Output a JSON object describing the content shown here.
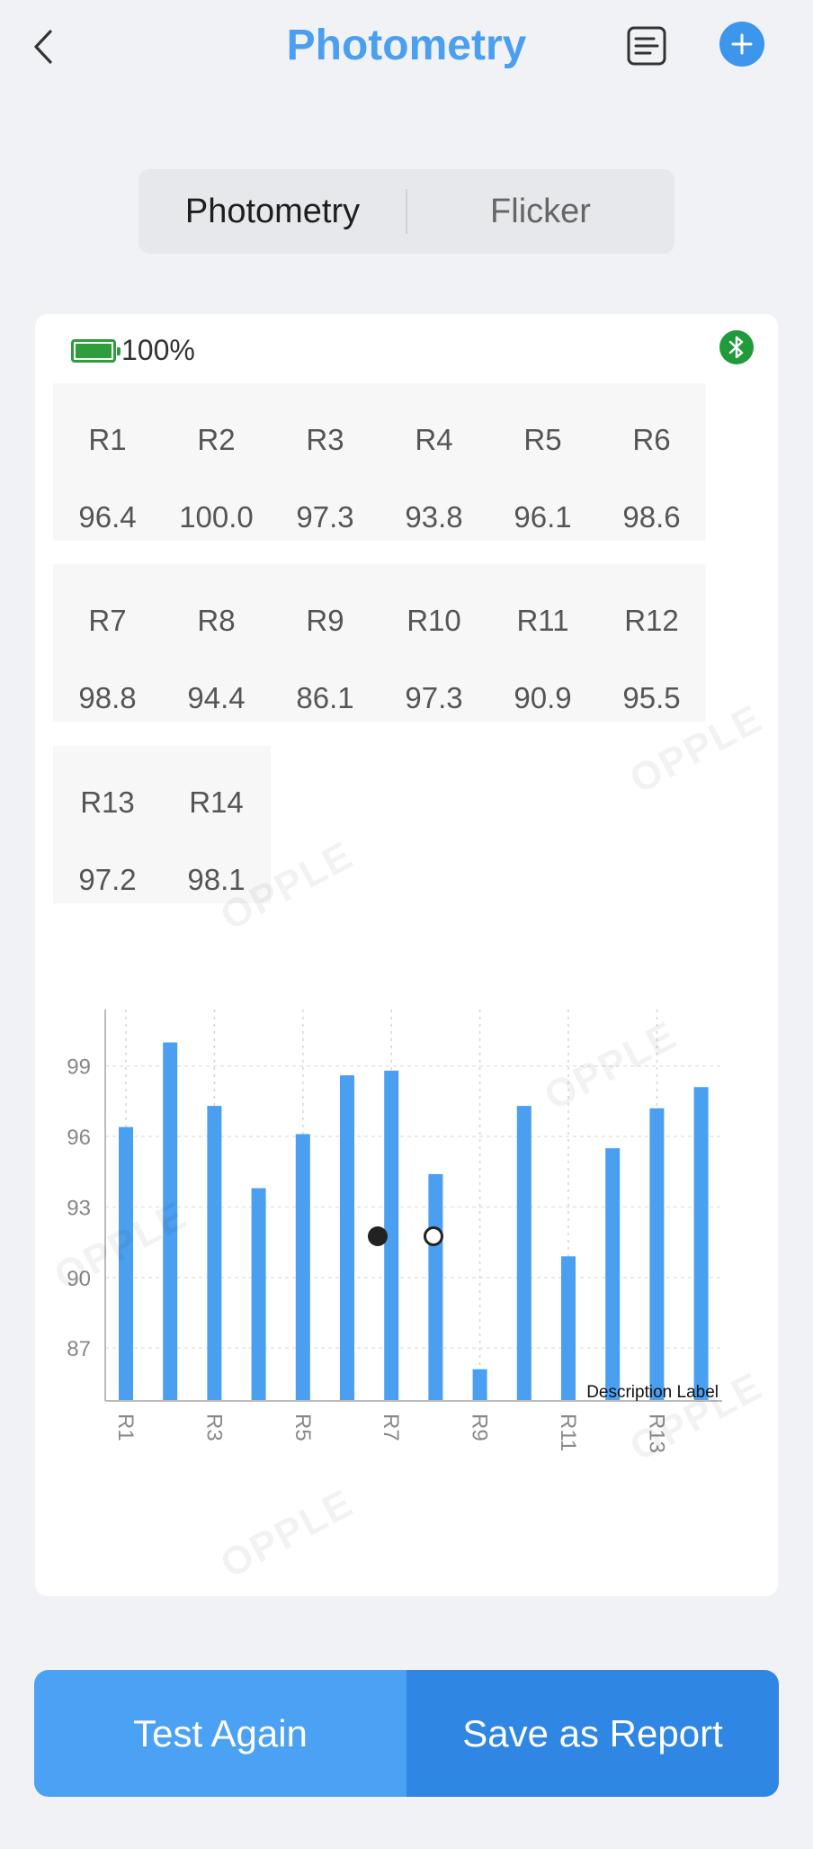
{
  "header": {
    "title": "Photometry",
    "icons": [
      "chevron-left-icon",
      "report-icon",
      "plus-icon"
    ]
  },
  "segmented": {
    "left_label": "Photometry",
    "right_label": "Flicker"
  },
  "status": {
    "battery_text": "100%",
    "battery_color": "#2e9d3b",
    "bluetooth_color": "#1f9b3c"
  },
  "r_values": [
    {
      "label": "R1",
      "value": "96.4"
    },
    {
      "label": "R2",
      "value": "100.0"
    },
    {
      "label": "R3",
      "value": "97.3"
    },
    {
      "label": "R4",
      "value": "93.8"
    },
    {
      "label": "R5",
      "value": "96.1"
    },
    {
      "label": "R6",
      "value": "98.6"
    },
    {
      "label": "R7",
      "value": "98.8"
    },
    {
      "label": "R8",
      "value": "94.4"
    },
    {
      "label": "R9",
      "value": "86.1"
    },
    {
      "label": "R10",
      "value": "97.3"
    },
    {
      "label": "R11",
      "value": "90.9"
    },
    {
      "label": "R12",
      "value": "95.5"
    },
    {
      "label": "R13",
      "value": "97.2"
    },
    {
      "label": "R14",
      "value": "98.1"
    }
  ],
  "chart_data": {
    "type": "bar",
    "categories": [
      "R1",
      "R2",
      "R3",
      "R4",
      "R5",
      "R6",
      "R7",
      "R8",
      "R9",
      "R10",
      "R11",
      "R12",
      "R13",
      "R14"
    ],
    "values": [
      96.4,
      100.0,
      97.3,
      93.8,
      96.1,
      98.6,
      98.8,
      94.4,
      86.1,
      97.3,
      90.9,
      95.5,
      97.2,
      98.1
    ],
    "x_tick_labels": [
      "R1",
      "R3",
      "R5",
      "R7",
      "R9",
      "R11",
      "R13"
    ],
    "y_ticks": [
      87,
      90,
      93,
      96,
      99
    ],
    "ylim": [
      84.75,
      101.4
    ],
    "description_label": "Description Label",
    "bar_color": "#4a9ff0",
    "grid": true
  },
  "pager": {
    "count": 2,
    "active": 0
  },
  "watermark": "OPPLE",
  "actions": {
    "test_again": "Test Again",
    "save_report": "Save as Report"
  },
  "colors": {
    "accent": "#4a9ff0",
    "background": "#f0f2f5"
  }
}
